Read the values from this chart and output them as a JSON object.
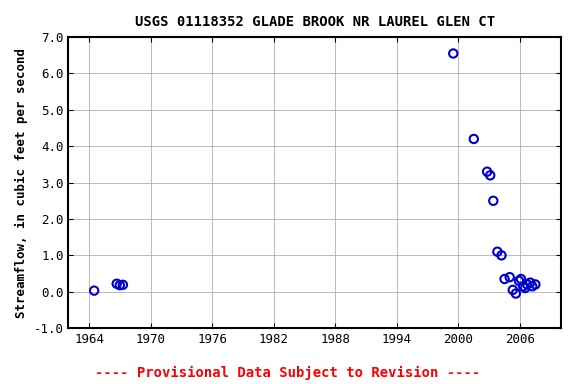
{
  "title": "USGS 01118352 GLADE BROOK NR LAUREL GLEN CT",
  "xlabel": "",
  "ylabel": "Streamflow, in cubic feet per second",
  "xlim": [
    1962,
    2010
  ],
  "ylim": [
    -1.0,
    7.0
  ],
  "xticks": [
    1964,
    1970,
    1976,
    1982,
    1988,
    1994,
    2000,
    2006
  ],
  "yticks": [
    -1.0,
    0.0,
    1.0,
    2.0,
    3.0,
    4.0,
    5.0,
    6.0,
    7.0
  ],
  "x_data": [
    1964.5,
    1966.7,
    1967.0,
    1967.3,
    1999.5,
    2001.5,
    2002.8,
    2003.1,
    2003.4,
    2003.8,
    2004.2,
    2004.5,
    2005.0,
    2005.3,
    2005.6,
    2005.9,
    2006.1,
    2006.3,
    2006.5,
    2006.7,
    2007.0,
    2007.2,
    2007.5
  ],
  "y_data": [
    0.03,
    0.22,
    0.18,
    0.19,
    6.55,
    4.2,
    3.3,
    3.2,
    2.5,
    1.1,
    1.0,
    0.35,
    0.4,
    0.05,
    -0.05,
    0.3,
    0.35,
    0.15,
    0.1,
    0.2,
    0.25,
    0.15,
    0.2
  ],
  "marker_color": "#0000cc",
  "marker_size": 6,
  "background_color": "#ffffff",
  "grid_color": "#aaaaaa",
  "title_fontsize": 10,
  "label_fontsize": 9,
  "tick_fontsize": 9,
  "provisional_text": "---- Provisional Data Subject to Revision ----",
  "provisional_color": "#ff0000",
  "provisional_fontsize": 10
}
